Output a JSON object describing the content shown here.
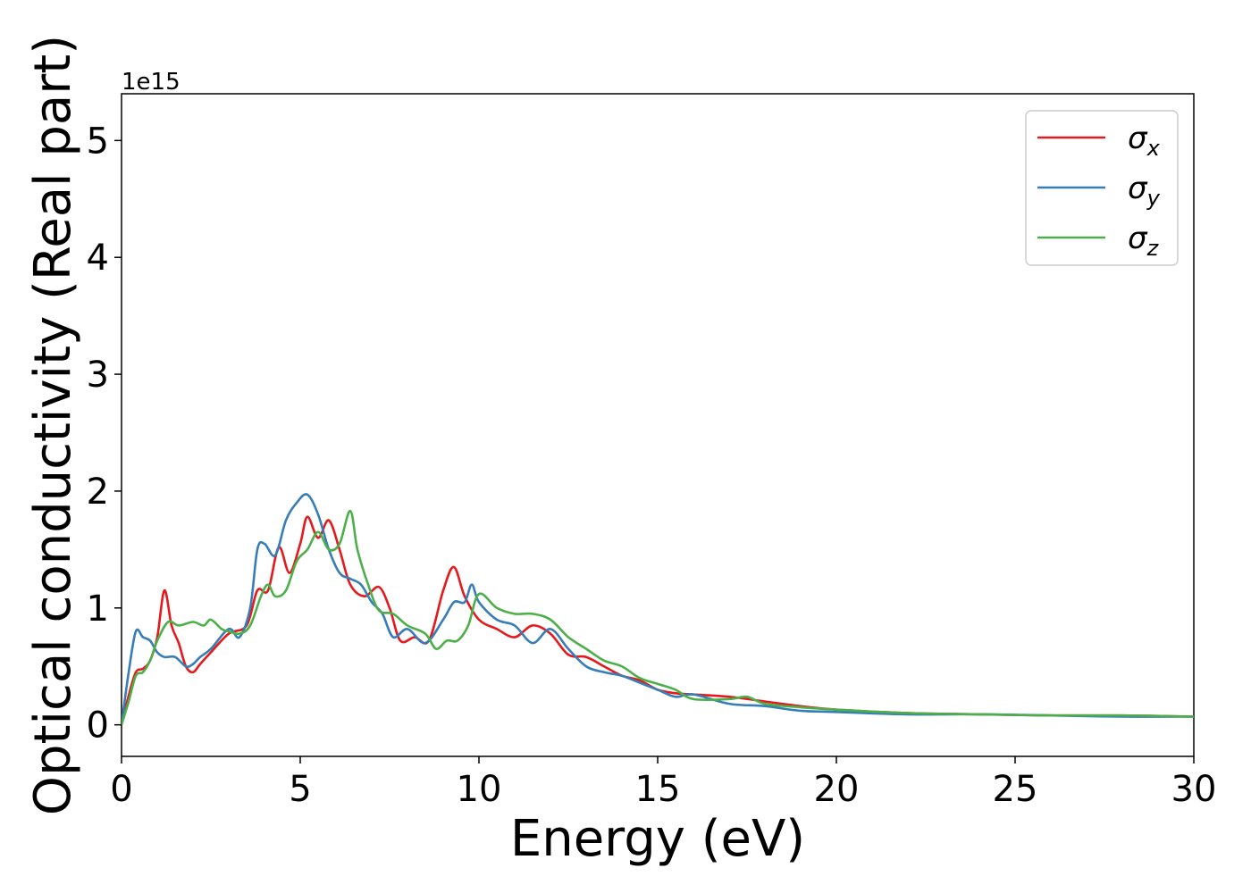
{
  "chart_data": {
    "type": "line",
    "title": "",
    "xlabel": "Energy (eV)",
    "ylabel": "Optical conductivity (Real part)",
    "y_offset_label": "1e15",
    "xlim": [
      0,
      30
    ],
    "ylim": [
      -0.27,
      5.4
    ],
    "xticks": [
      0,
      5,
      10,
      15,
      20,
      25,
      30
    ],
    "xtick_labels": [
      "0",
      "5",
      "10",
      "15",
      "20",
      "25",
      "30"
    ],
    "yticks": [
      0,
      1,
      2,
      3,
      4,
      5
    ],
    "ytick_labels": [
      "0",
      "1",
      "2",
      "3",
      "4",
      "5"
    ],
    "grid": false,
    "legend": {
      "position": "top-right",
      "entries": [
        {
          "label": "σ",
          "sub": "x",
          "color": "#e41a1c"
        },
        {
          "label": "σ",
          "sub": "y",
          "color": "#377eb8"
        },
        {
          "label": "σ",
          "sub": "z",
          "color": "#4daf4a"
        }
      ]
    },
    "series": [
      {
        "name": "σx",
        "color": "#e41a1c",
        "x": [
          0,
          0.2,
          0.4,
          0.6,
          0.8,
          1.0,
          1.2,
          1.4,
          1.6,
          1.8,
          2.0,
          2.2,
          2.5,
          3.0,
          3.5,
          3.8,
          4.1,
          4.4,
          4.7,
          5.0,
          5.2,
          5.5,
          5.8,
          6.1,
          6.4,
          6.8,
          7.2,
          7.5,
          7.8,
          8.2,
          8.6,
          9.0,
          9.3,
          9.6,
          10.0,
          10.5,
          11.0,
          11.5,
          12.0,
          12.5,
          13.0,
          13.5,
          14.0,
          14.5,
          15.0,
          15.5,
          16.0,
          17.0,
          18.0,
          19.0,
          20.0,
          22.0,
          24.0,
          26.0,
          28.0,
          30.0
        ],
        "y": [
          0,
          0.25,
          0.45,
          0.48,
          0.55,
          0.75,
          1.15,
          0.85,
          0.7,
          0.5,
          0.45,
          0.52,
          0.62,
          0.78,
          0.85,
          1.15,
          1.15,
          1.52,
          1.3,
          1.55,
          1.78,
          1.6,
          1.75,
          1.5,
          1.2,
          1.1,
          1.18,
          1.0,
          0.72,
          0.75,
          0.72,
          1.15,
          1.35,
          1.1,
          0.9,
          0.82,
          0.75,
          0.85,
          0.78,
          0.6,
          0.58,
          0.5,
          0.42,
          0.38,
          0.3,
          0.27,
          0.26,
          0.24,
          0.2,
          0.16,
          0.13,
          0.1,
          0.09,
          0.08,
          0.08,
          0.07
        ]
      },
      {
        "name": "σy",
        "color": "#377eb8",
        "x": [
          0,
          0.2,
          0.4,
          0.6,
          0.8,
          1.0,
          1.2,
          1.5,
          1.8,
          2.0,
          2.2,
          2.5,
          3.0,
          3.3,
          3.6,
          3.8,
          4.0,
          4.3,
          4.6,
          4.9,
          5.2,
          5.5,
          5.8,
          6.1,
          6.4,
          6.7,
          7.0,
          7.3,
          7.6,
          8.0,
          8.5,
          9.0,
          9.3,
          9.6,
          9.8,
          10.0,
          10.5,
          11.0,
          11.5,
          12.0,
          12.5,
          13.0,
          13.5,
          14.0,
          14.5,
          15.0,
          15.5,
          16.0,
          17.0,
          18.0,
          19.0,
          20.0,
          22.0,
          24.0,
          26.0,
          28.0,
          30.0
        ],
        "y": [
          0,
          0.45,
          0.8,
          0.75,
          0.72,
          0.62,
          0.58,
          0.58,
          0.5,
          0.52,
          0.58,
          0.65,
          0.82,
          0.75,
          1.0,
          1.5,
          1.55,
          1.45,
          1.75,
          1.9,
          1.97,
          1.8,
          1.5,
          1.3,
          1.25,
          1.2,
          1.05,
          0.95,
          0.75,
          0.82,
          0.7,
          0.9,
          1.05,
          1.05,
          1.2,
          1.05,
          0.9,
          0.85,
          0.7,
          0.82,
          0.65,
          0.5,
          0.45,
          0.42,
          0.36,
          0.3,
          0.24,
          0.26,
          0.18,
          0.16,
          0.12,
          0.11,
          0.09,
          0.09,
          0.08,
          0.07,
          0.07
        ]
      },
      {
        "name": "σz",
        "color": "#4daf4a",
        "x": [
          0,
          0.2,
          0.4,
          0.6,
          0.8,
          1.0,
          1.3,
          1.6,
          2.0,
          2.3,
          2.5,
          2.8,
          3.0,
          3.3,
          3.6,
          3.9,
          4.1,
          4.3,
          4.6,
          4.9,
          5.2,
          5.5,
          5.8,
          6.1,
          6.4,
          6.6,
          6.9,
          7.2,
          7.6,
          8.0,
          8.5,
          8.8,
          9.1,
          9.4,
          9.7,
          10.0,
          10.5,
          11.0,
          11.5,
          12.0,
          12.5,
          13.0,
          13.5,
          14.0,
          14.5,
          15.0,
          15.5,
          16.0,
          17.0,
          17.5,
          18.0,
          19.0,
          20.0,
          22.0,
          24.0,
          26.0,
          28.0,
          30.0
        ],
        "y": [
          0,
          0.2,
          0.42,
          0.45,
          0.55,
          0.72,
          0.88,
          0.85,
          0.88,
          0.85,
          0.9,
          0.82,
          0.8,
          0.78,
          0.85,
          1.1,
          1.2,
          1.1,
          1.15,
          1.4,
          1.5,
          1.65,
          1.5,
          1.55,
          1.83,
          1.5,
          1.2,
          0.98,
          0.95,
          0.85,
          0.78,
          0.65,
          0.72,
          0.72,
          0.85,
          1.12,
          1.0,
          0.95,
          0.95,
          0.9,
          0.75,
          0.65,
          0.55,
          0.5,
          0.4,
          0.35,
          0.3,
          0.22,
          0.22,
          0.24,
          0.18,
          0.15,
          0.13,
          0.1,
          0.09,
          0.08,
          0.08,
          0.07
        ]
      }
    ]
  }
}
